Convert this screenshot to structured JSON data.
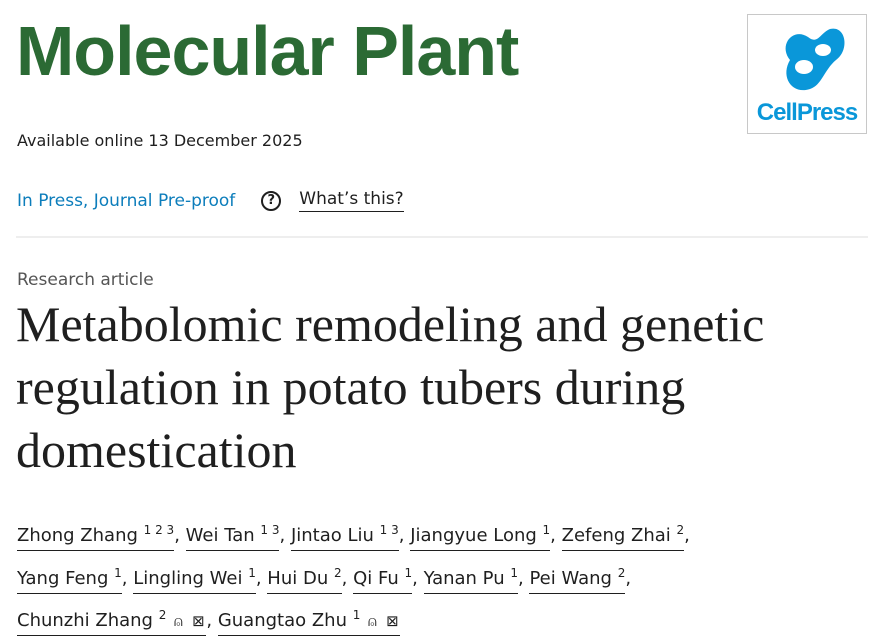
{
  "journal": {
    "name": "Molecular Plant",
    "brand_color": "#2b6a34"
  },
  "publisher_logo": {
    "text": "CellPress",
    "color": "#0a97d9"
  },
  "available_online": "Available online 13 December 2025",
  "status": {
    "label": "In Press, Journal Pre-proof",
    "help_icon": "question-circle-icon",
    "whats_this": "What’s this?"
  },
  "article_type": "Research article",
  "title": "Metabolomic remodeling and genetic regulation in potato tubers during domestication",
  "authors": [
    {
      "name": "Zhong Zhang",
      "sup": "1 2 3"
    },
    {
      "name": "Wei Tan",
      "sup": "1 3"
    },
    {
      "name": "Jintao Liu",
      "sup": "1 3"
    },
    {
      "name": "Jiangyue Long",
      "sup": "1"
    },
    {
      "name": "Zefeng Zhai",
      "sup": "2"
    },
    {
      "name": "Yang Feng",
      "sup": "1"
    },
    {
      "name": "Lingling Wei",
      "sup": "1"
    },
    {
      "name": "Hui Du",
      "sup": "2"
    },
    {
      "name": "Qi Fu",
      "sup": "1"
    },
    {
      "name": "Yanan Pu",
      "sup": "1"
    },
    {
      "name": "Pei Wang",
      "sup": "2"
    },
    {
      "name": "Chunzhi Zhang",
      "sup": "2",
      "icons": [
        "person-icon",
        "email-icon"
      ]
    },
    {
      "name": "Guangtao Zhu",
      "sup": "1",
      "icons": [
        "person-icon",
        "email-icon"
      ]
    }
  ]
}
